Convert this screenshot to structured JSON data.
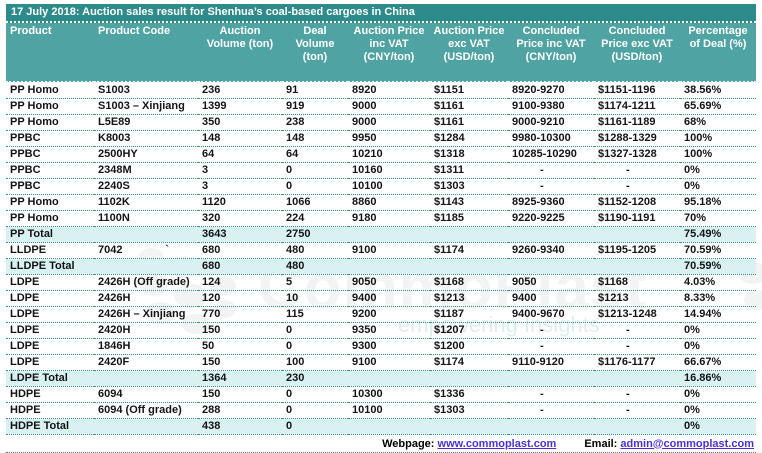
{
  "title": "17 July 2018: Auction sales result for Shenhua’s coal-based cargoes in China",
  "colors": {
    "title_bar": "#2E8B8B",
    "header_bg": "#4FA3A3",
    "total_row_bg": "#D9F1F1",
    "row_divider": "#2E9393",
    "link": "#4C2ED9"
  },
  "watermark": {
    "text": "CommoPlast",
    "tagline": "empowering Insights"
  },
  "table": {
    "columns": [
      "Product",
      "Product Code",
      "Auction Volume (ton)",
      "Deal Volume (ton)",
      "Auction Price inc VAT (CNY/ton)",
      "Auction Price exc VAT (USD/ton)",
      "Concluded Price inc VAT (CNY/ton)",
      "Concluded Price exc VAT (USD/ton)",
      "Percentage of Deal (%)"
    ],
    "rows": [
      {
        "total": false,
        "cells": [
          "PP Homo",
          "S1003",
          "236",
          "91",
          "8920",
          "$1151",
          "8920-9270",
          "$1151-1196",
          "38.56%"
        ]
      },
      {
        "total": false,
        "cells": [
          "PP Homo",
          "S1003 – Xinjiang",
          "1399",
          "919",
          "9000",
          "$1161",
          "9100-9380",
          "$1174-1211",
          "65.69%"
        ]
      },
      {
        "total": false,
        "cells": [
          "PP Homo",
          "L5E89",
          "350",
          "238",
          "9000",
          "$1161",
          "9000-9210",
          "$1161-1189",
          "68%"
        ]
      },
      {
        "total": false,
        "cells": [
          "PPBC",
          "K8003",
          "148",
          "148",
          "9950",
          "$1284",
          "9980-10300",
          "$1288-1329",
          "100%"
        ]
      },
      {
        "total": false,
        "cells": [
          "PPBC",
          "2500HY",
          "64",
          "64",
          "10210",
          "$1318",
          "10285-10290",
          "$1327-1328",
          "100%"
        ]
      },
      {
        "total": false,
        "cells": [
          "PPBC",
          "2348M",
          "3",
          "0",
          "10160",
          "$1311",
          "-",
          "-",
          "0%"
        ]
      },
      {
        "total": false,
        "cells": [
          "PPBC",
          "2240S",
          "3",
          "0",
          "10100",
          "$1303",
          "-",
          "-",
          "0%"
        ]
      },
      {
        "total": false,
        "cells": [
          "PP Homo",
          "1102K",
          "1120",
          "1066",
          "8860",
          "$1143",
          "8925-9360",
          "$1152-1208",
          "95.18%"
        ]
      },
      {
        "total": false,
        "cells": [
          "PP Homo",
          "1100N",
          "320",
          "224",
          "9180",
          "$1185",
          "9220-9225",
          "$1190-1191",
          "70%"
        ]
      },
      {
        "total": true,
        "cells": [
          "PP Total",
          "",
          "3643",
          "2750",
          "",
          "",
          "",
          "",
          "75.49%"
        ]
      },
      {
        "total": false,
        "cells": [
          "LLDPE",
          "7042              `",
          "680",
          "480",
          "9100",
          "$1174",
          "9260-9340",
          "$1195-1205",
          "70.59%"
        ]
      },
      {
        "total": true,
        "cells": [
          "LLDPE Total",
          "",
          "680",
          "480",
          "",
          "",
          "",
          "",
          "70.59%"
        ]
      },
      {
        "total": false,
        "cells": [
          "LDPE",
          "2426H (Off grade)",
          "124",
          "5",
          "9050",
          "$1168",
          "9050",
          "$1168",
          "4.03%"
        ]
      },
      {
        "total": false,
        "cells": [
          "LDPE",
          "2426H",
          "120",
          "10",
          "9400",
          "$1213",
          "9400",
          "$1213",
          "8.33%"
        ]
      },
      {
        "total": false,
        "cells": [
          "LDPE",
          "2426H – Xinjiang",
          "770",
          "115",
          "9200",
          "$1187",
          "9400-9670",
          "$1213-1248",
          "14.94%"
        ]
      },
      {
        "total": false,
        "cells": [
          "LDPE",
          "2420H",
          "150",
          "0",
          "9350",
          "$1207",
          "-",
          "-",
          "0%"
        ]
      },
      {
        "total": false,
        "cells": [
          "LDPE",
          "1846H",
          "50",
          "0",
          "9300",
          "$1200",
          "-",
          "-",
          "0%"
        ]
      },
      {
        "total": false,
        "cells": [
          "LDPE",
          "2420F",
          "150",
          "100",
          "9100",
          "$1174",
          "9110-9120",
          "$1176-1177",
          "66.67%"
        ]
      },
      {
        "total": true,
        "cells": [
          "LDPE Total",
          "",
          "1364",
          "230",
          "",
          "",
          "",
          "",
          "16.86%"
        ]
      },
      {
        "total": false,
        "cells": [
          "HDPE",
          "6094",
          "150",
          "0",
          "10300",
          "$1336",
          "-",
          "-",
          "0%"
        ]
      },
      {
        "total": false,
        "cells": [
          "HDPE",
          "6094 (Off grade)",
          "288",
          "0",
          "10100",
          "$1303",
          "-",
          "-",
          "0%"
        ]
      },
      {
        "total": true,
        "cells": [
          "HDPE Total",
          "",
          "438",
          "0",
          "",
          "",
          "",
          "",
          "0%"
        ]
      }
    ]
  },
  "footer": {
    "webpage_label": "Webpage:",
    "webpage_link": "www.commoplast.com",
    "email_label": "Email:",
    "email_link": "admin@commoplast.com"
  }
}
